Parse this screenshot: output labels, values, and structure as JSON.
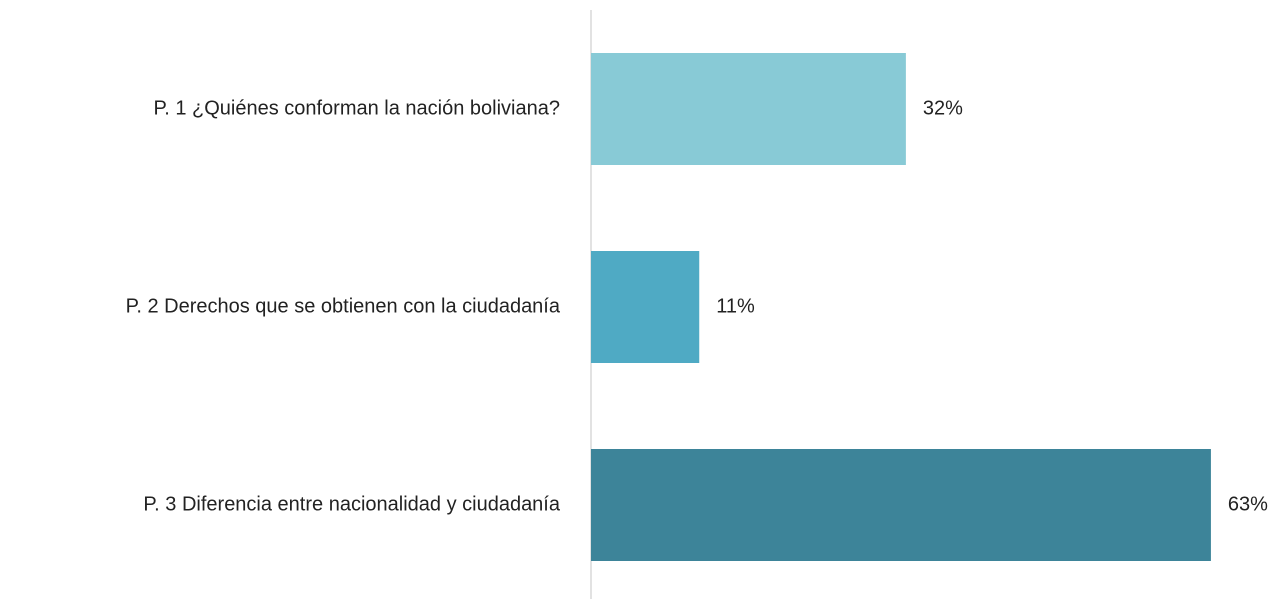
{
  "chart_data": {
    "type": "barh",
    "categories": [
      "P. 1 ¿Quiénes conforman la nación boliviana?",
      "P. 2 Derechos que se obtienen con la ciudadanía",
      "P. 3 Diferencia entre nacionalidad y ciudadanía"
    ],
    "values": [
      32,
      11,
      63
    ],
    "value_labels": [
      "32%",
      "11%",
      "63%"
    ],
    "colors": [
      "#88cad6",
      "#4faac4",
      "#3d8499"
    ]
  }
}
